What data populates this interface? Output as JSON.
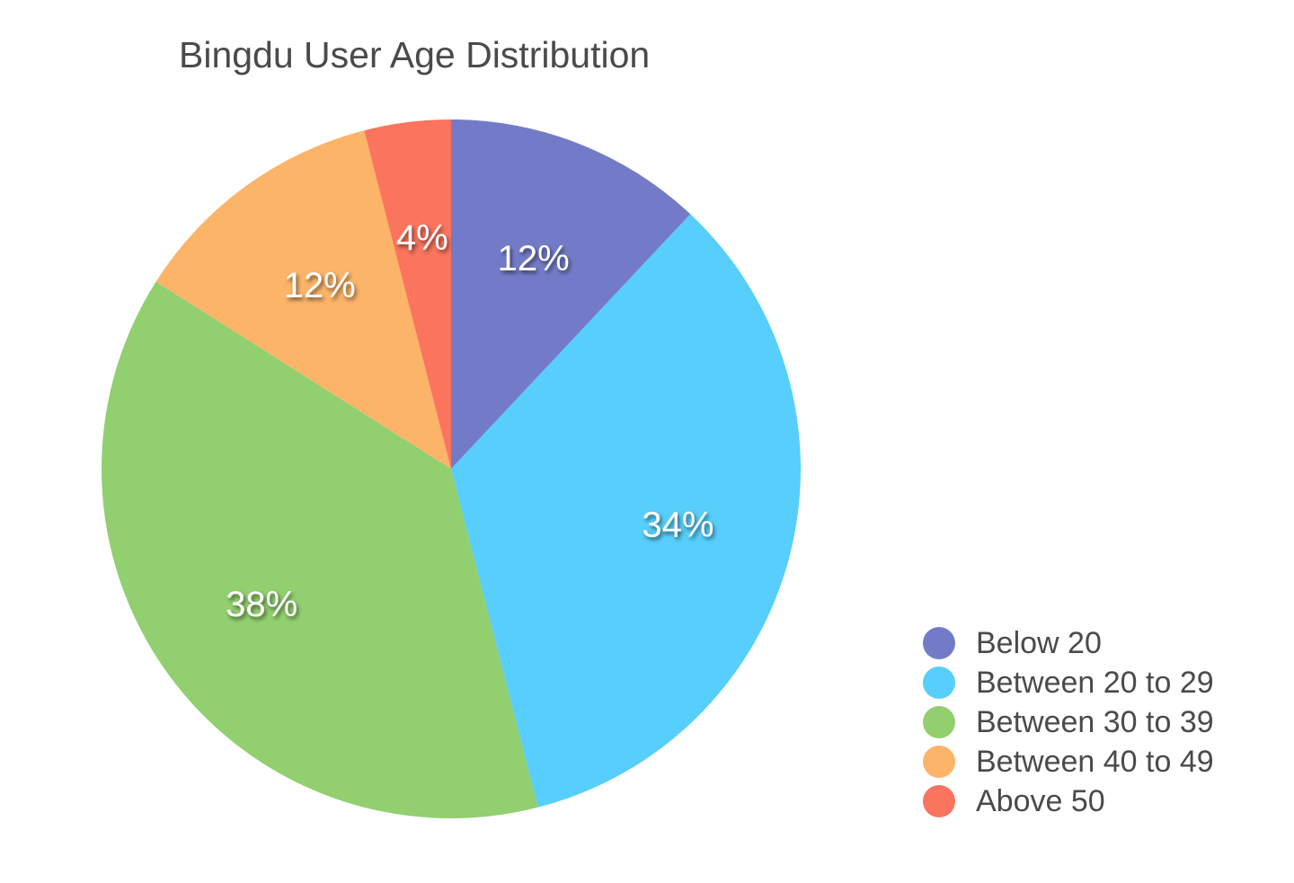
{
  "chart_data": {
    "type": "pie",
    "title": "Bingdu User Age Distribution",
    "categories": [
      "Below 20",
      "Between 20 to 29",
      "Between 30 to 39",
      "Between 40 to 49",
      "Above 50"
    ],
    "values": [
      12,
      34,
      38,
      12,
      4
    ],
    "labels": [
      "12%",
      "34%",
      "38%",
      "12%",
      "4%"
    ],
    "colors": [
      "#737bc8",
      "#57cefb",
      "#91cf6f",
      "#fbb468",
      "#fa745e"
    ],
    "unit": "%",
    "start_angle": "12 o'clock",
    "direction": "clockwise",
    "legend_position": "bottom-right"
  },
  "legend": {
    "items": [
      {
        "label": "Below 20",
        "color": "#737bc8"
      },
      {
        "label": "Between 20 to 29",
        "color": "#57cefb"
      },
      {
        "label": "Between 30 to 39",
        "color": "#91cf6f"
      },
      {
        "label": "Between 40 to 49",
        "color": "#fbb468"
      },
      {
        "label": "Above 50",
        "color": "#fa745e"
      }
    ]
  }
}
